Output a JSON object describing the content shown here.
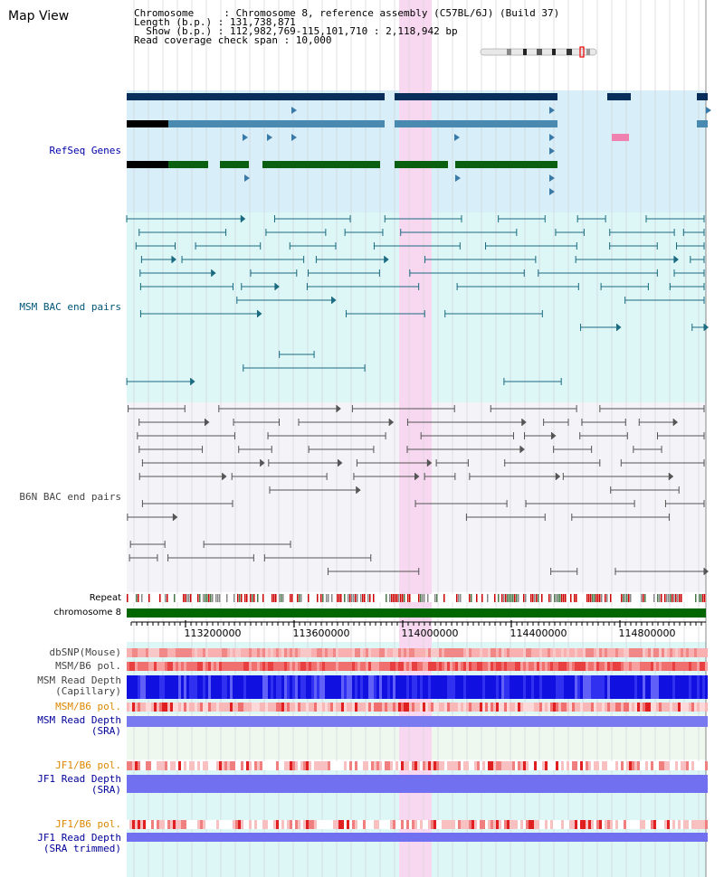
{
  "view_title": "Map View",
  "header": {
    "line1": "Chromosome     : Chromosome 8, reference assembly (C57BL/6J) (Build 37)",
    "line2": "Length (b.p.) : 131,738,871",
    "line3": "  Show (b.p.) : 112,982,769-115,101,710 : 2,118,942 bp",
    "line4": "Read coverage check span : 10,000"
  },
  "tracks": {
    "refseq": "RefSeq Genes",
    "msm_bac": "MSM BAC end pairs",
    "b6n_bac": "B6N BAC end pairs",
    "repeat": "Repeat",
    "chromosome": "chromosome 8",
    "dbsnp": "dbSNP(Mouse)",
    "msm_b6_pol_1": "MSM/B6 pol.",
    "msm_read_depth_cap_1": "MSM Read Depth",
    "msm_read_depth_cap_2": "(Capillary)",
    "msm_b6_pol_2": "MSM/B6 pol.",
    "msm_read_depth_sra_1": "MSM Read Depth",
    "msm_read_depth_sra_2": "(SRA)",
    "jf1_b6_pol_1": "JF1/B6 pol.",
    "jf1_read_depth_sra_1": "JF1 Read Depth",
    "jf1_read_depth_sra_2": "(SRA)",
    "jf1_b6_pol_2": "JF1/B6 pol.",
    "jf1_read_depth_trim_1": "JF1 Read Depth",
    "jf1_read_depth_trim_2": "(SRA trimmed)"
  },
  "ruler": {
    "labels": [
      "113200000",
      "113600000",
      "114000000",
      "114400000",
      "114800000"
    ]
  },
  "colors": {
    "refseq_label": "#0000aa",
    "msm_label": "#005577",
    "b6n_label": "#444444",
    "orange_label": "#dd8800",
    "blue_label": "#000099",
    "highlight": "#f8d8f0",
    "chromosome_bar": "#006600"
  }
}
